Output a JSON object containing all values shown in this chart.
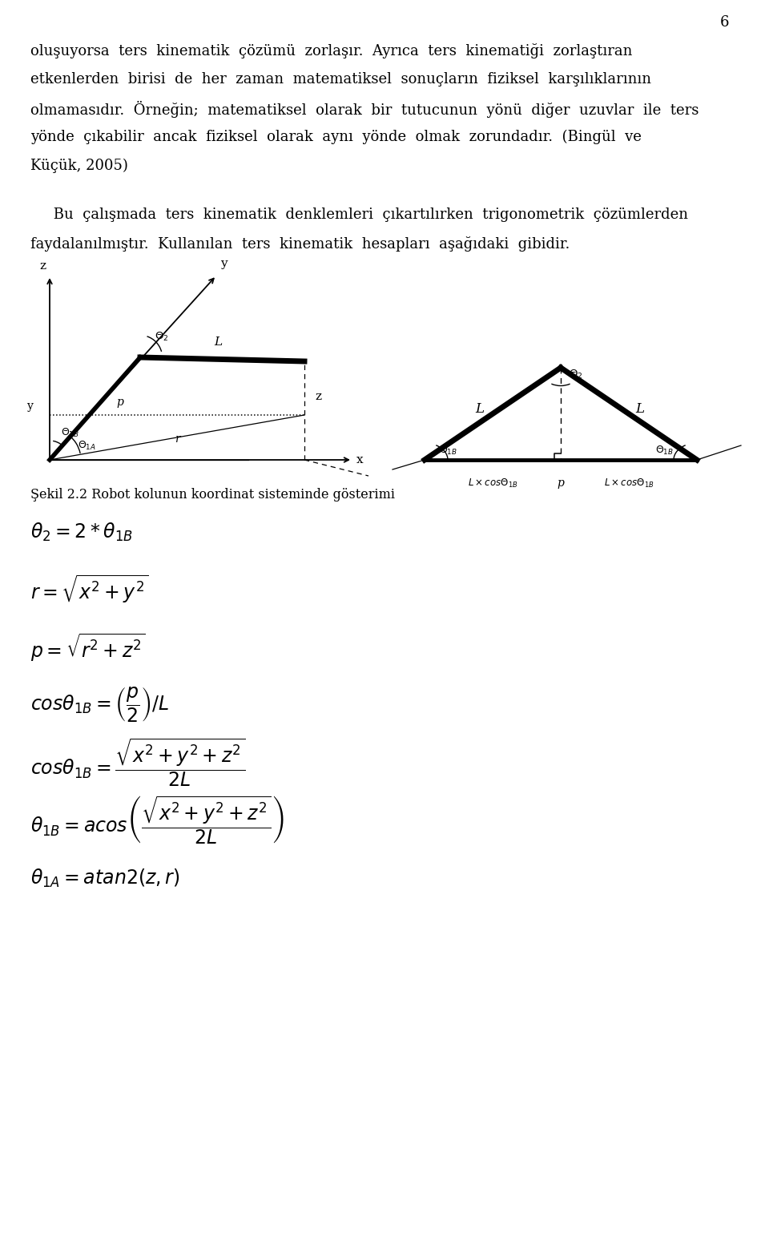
{
  "page_number": "6",
  "para1_line1": "oluşuyorsa  ters  kinematik  çözümü  zorlaşır.  Ayrıca  ters  kinematiği  zorlaştıran",
  "para1_line2": "etkenlerden  birisi  de  her  zaman  matematiksel  sonuçların  fiziksel  karşılıklarının",
  "para1_line3": "olmamasıdır.  Örneğin;  matematiksel  olarak  bir  tutucunun  yönü  diğer  uzuvlar  ile  ters",
  "para1_line4": "yönde  çıkabilir  ancak  fiziksel  olarak  aynı  yönde  olmak  zorundadır.  (Bingül  ve",
  "para1_line5": "Küçük, 2005)",
  "para2_line1": "     Bu  çalışmada  ters  kinematik  denklemleri  çıkartılırken  trigonometrik  çözümlerden",
  "para2_line2": "faydalanılmıştır.  Kullanılan  ters  kinematik  hesapları  aşağıdaki  gibidir.",
  "figure_caption": "Şekil 2.2 Robot kolunun koordinat sisteminde gösterimi",
  "bg_color": "#ffffff"
}
